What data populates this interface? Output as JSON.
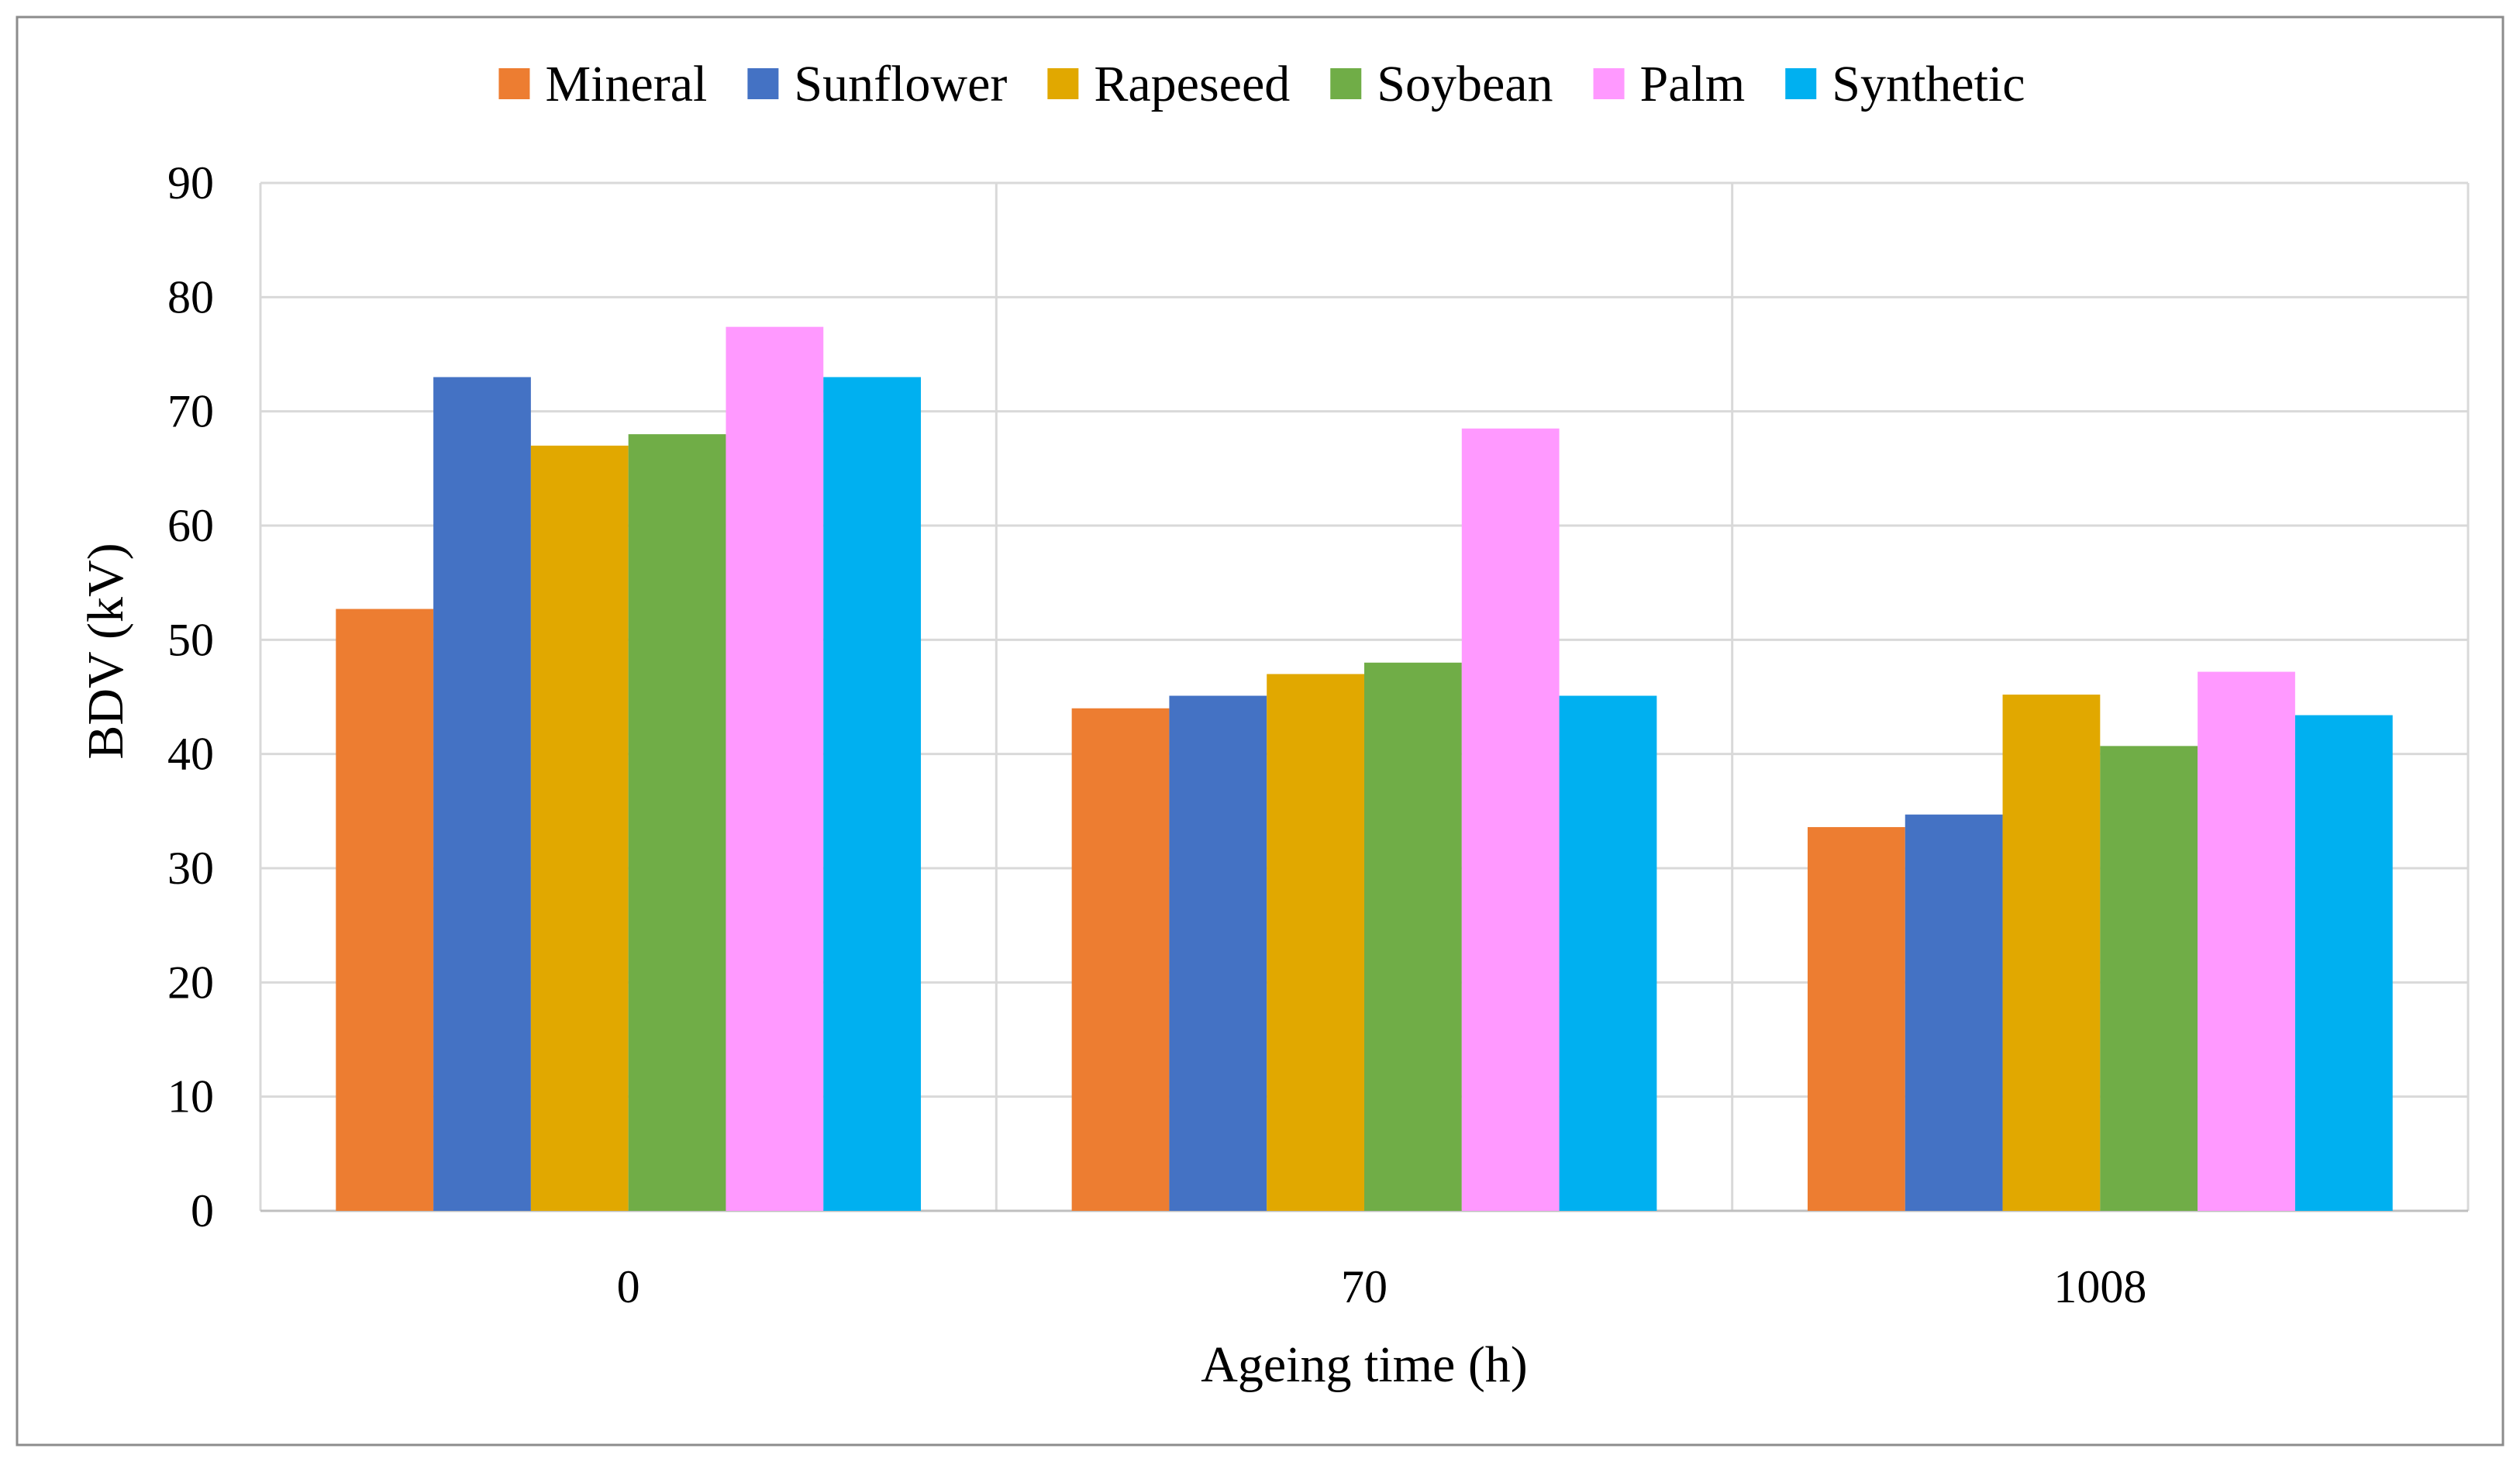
{
  "chart_data": {
    "type": "bar",
    "categories": [
      "0",
      "70",
      "1008"
    ],
    "series": [
      {
        "name": "Mineral",
        "color": "#ED7D31",
        "values": [
          52.7,
          44.0,
          33.6
        ]
      },
      {
        "name": "Sunflower",
        "color": "#4472C4",
        "values": [
          73.0,
          45.1,
          34.7
        ]
      },
      {
        "name": "Rapeseed",
        "color": "#E1A800",
        "values": [
          67.0,
          47.0,
          45.2
        ]
      },
      {
        "name": "Soybean",
        "color": "#70AD47",
        "values": [
          68.0,
          48.0,
          40.7
        ]
      },
      {
        "name": "Palm",
        "color": "#FF99FF",
        "values": [
          77.4,
          68.5,
          47.2
        ]
      },
      {
        "name": "Synthetic",
        "color": "#00B0F0",
        "values": [
          73.0,
          45.1,
          43.4
        ]
      }
    ],
    "title": "",
    "xlabel": "Ageing time (h)",
    "ylabel": "BDV (kV)",
    "ylim": [
      0,
      90
    ],
    "yticks": [
      0,
      10,
      20,
      30,
      40,
      50,
      60,
      70,
      80,
      90
    ],
    "grid": true,
    "legend_position": "top"
  }
}
